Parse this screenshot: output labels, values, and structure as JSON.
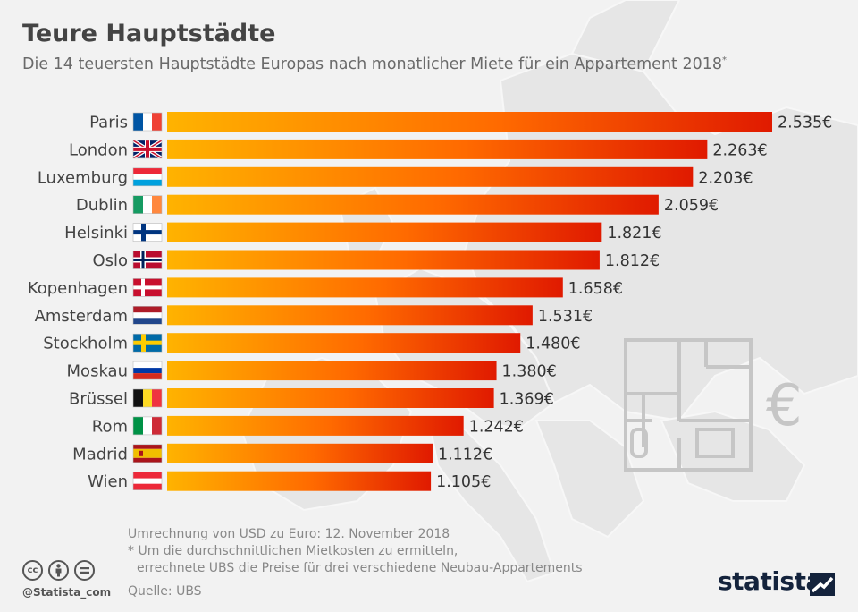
{
  "header": {
    "title": "Teure Hauptstädte",
    "subtitle": "Die 14 teuersten Hauptstädte Europas nach monatlicher Miete für ein Appartement 2018",
    "subtitle_mark": "*"
  },
  "chart_data": {
    "type": "bar",
    "orientation": "horizontal",
    "title": "Teure Hauptstädte",
    "subtitle": "Die 14 teuersten Hauptstädte Europas nach monatlicher Miete für ein Appartement 2018*",
    "categories": [
      "Paris",
      "London",
      "Luxemburg",
      "Dublin",
      "Helsinki",
      "Oslo",
      "Kopenhagen",
      "Amsterdam",
      "Stockholm",
      "Moskau",
      "Brüssel",
      "Rom",
      "Madrid",
      "Wien"
    ],
    "values": [
      2535,
      2263,
      2203,
      2059,
      1821,
      1812,
      1658,
      1531,
      1480,
      1380,
      1369,
      1242,
      1112,
      1105
    ],
    "value_labels": [
      "2.535€",
      "2.263€",
      "2.203€",
      "2.059€",
      "1.821€",
      "1.812€",
      "1.658€",
      "1.531€",
      "1.480€",
      "1.380€",
      "1.369€",
      "1.242€",
      "1.112€",
      "1.105€"
    ],
    "flags": [
      "france-flag-icon",
      "uk-flag-icon",
      "luxembourg-flag-icon",
      "ireland-flag-icon",
      "finland-flag-icon",
      "norway-flag-icon",
      "denmark-flag-icon",
      "netherlands-flag-icon",
      "sweden-flag-icon",
      "russia-flag-icon",
      "belgium-flag-icon",
      "italy-flag-icon",
      "spain-flag-icon",
      "austria-flag-icon"
    ],
    "xlim": [
      0,
      2535
    ],
    "grid": false,
    "legend": "none",
    "bar_gradient": [
      "#ffb300",
      "#ff6a00",
      "#e01a00"
    ]
  },
  "footer": {
    "note_1": "Umrechnung von USD zu Euro: 12. November 2018",
    "note_2": "* Um die durchschnittlichen Mietkosten zu ermitteln,",
    "note_3": "errechnete UBS die Preise für drei verschiedene Neubau-Appartements",
    "source": "Quelle: UBS",
    "handle": "@Statista_com",
    "brand": "statista",
    "cc_icons": [
      "cc-icon",
      "by-icon",
      "nd-icon"
    ]
  }
}
